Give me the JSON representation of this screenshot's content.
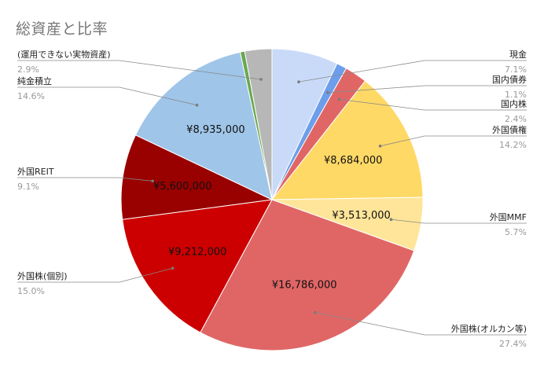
{
  "chart_data": {
    "type": "pie",
    "title": "総資産と比率",
    "start_angle_deg": 0,
    "direction": "clockwise",
    "slices": [
      {
        "name": "現金",
        "percent_label": "7.1%",
        "value": 4349000,
        "value_label": "",
        "color": "#c9daf8"
      },
      {
        "name": "国内債券",
        "percent_label": "1.1%",
        "value": 674000,
        "value_label": "",
        "color": "#6d9eeb"
      },
      {
        "name": "国内株",
        "percent_label": "2.4%",
        "value": 1470000,
        "value_label": "",
        "color": "#e06666"
      },
      {
        "name": "外国債権",
        "percent_label": "14.2%",
        "value": 8684000,
        "value_label": "¥8,684,000",
        "color": "#ffd966"
      },
      {
        "name": "外国MMF",
        "percent_label": "5.7%",
        "value": 3513000,
        "value_label": "¥3,513,000",
        "color": "#ffe599"
      },
      {
        "name": "外国株(オルカン等)",
        "percent_label": "27.4%",
        "value": 16786000,
        "value_label": "¥16,786,000",
        "color": "#e06666"
      },
      {
        "name": "外国株(個別)",
        "percent_label": "15.0%",
        "value": 9212000,
        "value_label": "¥9,212,000",
        "color": "#cc0000"
      },
      {
        "name": "外国REIT",
        "percent_label": "9.1%",
        "value": 5600000,
        "value_label": "¥5,600,000",
        "color": "#990000"
      },
      {
        "name": "純金積立",
        "percent_label": "14.6%",
        "value": 8935000,
        "value_label": "¥8,935,000",
        "color": "#9fc5e8"
      },
      {
        "name": "",
        "percent_label": "",
        "value": 300000,
        "value_label": "",
        "color": "#6aa84f"
      },
      {
        "name": "(運用できない実物資産)",
        "percent_label": "2.9%",
        "value": 1776000,
        "value_label": "",
        "color": "#b7b7b7"
      }
    ]
  }
}
